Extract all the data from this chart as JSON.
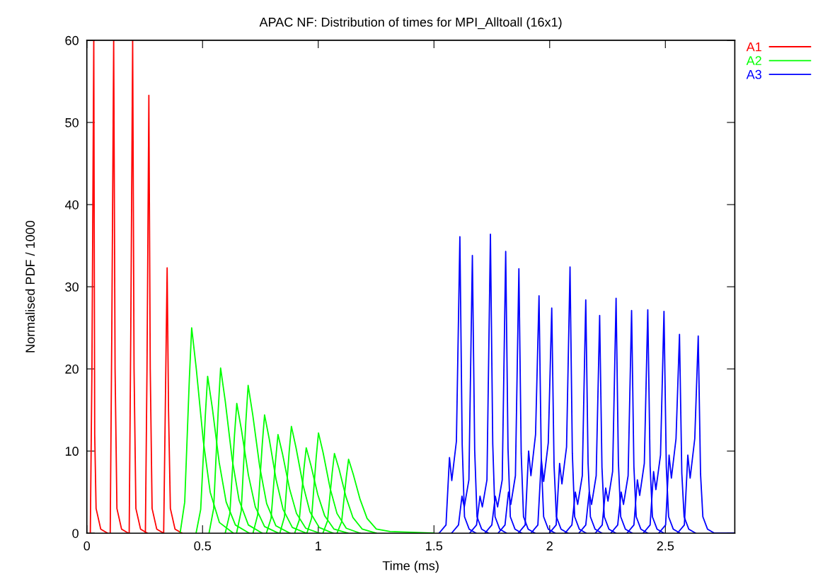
{
  "chart_data": {
    "type": "line",
    "title": "APAC NF: Distribution of times for MPI_Alltoall (16x1)",
    "xlabel": "Time (ms)",
    "ylabel": "Normalised PDF / 1000",
    "xlim": [
      0,
      2.8
    ],
    "xticks": [
      0,
      0.5,
      1,
      1.5,
      2,
      2.5
    ],
    "ylim": [
      0,
      60
    ],
    "yticks": [
      0,
      10,
      20,
      30,
      40,
      50,
      60
    ],
    "grid": false,
    "legend": "top right",
    "marker": "none",
    "line_style": "solid",
    "series": [
      {
        "name": "A1",
        "color": "#ff0000",
        "x": [
          0.015,
          0.022,
          0.03,
          0.034,
          0.04,
          0.06,
          0.09
        ],
        "values": [
          0,
          20,
          60,
          12,
          3,
          0.5,
          0
        ]
      },
      {
        "color": "#ff0000",
        "x": [
          0.101,
          0.108,
          0.116,
          0.122,
          0.13,
          0.15,
          0.18
        ],
        "values": [
          0,
          25,
          60,
          20,
          3,
          0.5,
          0
        ]
      },
      {
        "color": "#ff0000",
        "x": [
          0.183,
          0.19,
          0.198,
          0.204,
          0.212,
          0.232,
          0.262
        ],
        "values": [
          0,
          25,
          60,
          20,
          3,
          0.5,
          0
        ]
      },
      {
        "color": "#ff0000",
        "x": [
          0.253,
          0.26,
          0.268,
          0.274,
          0.282,
          0.302,
          0.332
        ],
        "values": [
          0,
          20,
          53.3,
          20,
          3,
          0.5,
          0
        ]
      },
      {
        "color": "#ff0000",
        "x": [
          0.332,
          0.339,
          0.347,
          0.353,
          0.361,
          0.381,
          0.411
        ],
        "values": [
          0,
          15,
          32.3,
          15,
          3,
          0.5,
          0
        ]
      },
      {
        "name": "A2",
        "color": "#00ff00",
        "x": [
          0.403,
          0.423,
          0.443,
          0.453,
          0.473,
          0.503,
          0.533,
          0.573,
          0.633
        ],
        "values": [
          0,
          3.8,
          18.8,
          25,
          20,
          11.3,
          5,
          1.3,
          0
        ]
      },
      {
        "color": "#00ff00",
        "x": [
          0.472,
          0.492,
          0.512,
          0.522,
          0.542,
          0.572,
          0.602,
          0.642,
          0.702
        ],
        "values": [
          0,
          2.9,
          14.3,
          19.1,
          15.3,
          8.6,
          3.8,
          1,
          0
        ]
      },
      {
        "color": "#00ff00",
        "x": [
          0.528,
          0.548,
          0.568,
          0.578,
          0.598,
          0.628,
          0.658,
          0.698,
          0.758
        ],
        "values": [
          0,
          3,
          15.1,
          20.1,
          16.1,
          9,
          4,
          1,
          0
        ]
      },
      {
        "color": "#00ff00",
        "x": [
          0.598,
          0.618,
          0.638,
          0.648,
          0.668,
          0.698,
          0.728,
          0.768,
          0.828
        ],
        "values": [
          0,
          2.4,
          11.9,
          15.8,
          12.6,
          7.1,
          3.2,
          0.8,
          0
        ]
      },
      {
        "color": "#00ff00",
        "x": [
          0.647,
          0.667,
          0.687,
          0.697,
          0.717,
          0.747,
          0.777,
          0.817,
          0.877
        ],
        "values": [
          0,
          2.7,
          13.5,
          18,
          14.4,
          8.1,
          3.6,
          0.9,
          0
        ]
      },
      {
        "color": "#00ff00",
        "x": [
          0.718,
          0.738,
          0.758,
          0.768,
          0.788,
          0.818,
          0.848,
          0.888,
          0.948
        ],
        "values": [
          0,
          2.2,
          10.8,
          14.4,
          11.5,
          6.5,
          2.9,
          0.7,
          0
        ]
      },
      {
        "color": "#00ff00",
        "x": [
          0.776,
          0.796,
          0.816,
          0.826,
          0.846,
          0.876,
          0.906,
          0.946,
          1.006
        ],
        "values": [
          0,
          1.8,
          9,
          12,
          9.6,
          5.4,
          2.4,
          0.6,
          0
        ]
      },
      {
        "color": "#00ff00",
        "x": [
          0.834,
          0.854,
          0.874,
          0.884,
          0.904,
          0.934,
          0.964,
          1.004,
          1.064
        ],
        "values": [
          0,
          2,
          9.8,
          13,
          10.4,
          5.9,
          2.6,
          0.7,
          0
        ]
      },
      {
        "color": "#00ff00",
        "x": [
          0.898,
          0.918,
          0.938,
          0.948,
          0.968,
          0.998,
          1.028,
          1.068,
          1.128
        ],
        "values": [
          0,
          1.6,
          7.8,
          10.4,
          8.3,
          4.7,
          2.1,
          0.5,
          0
        ]
      },
      {
        "color": "#00ff00",
        "x": [
          0.951,
          0.971,
          0.991,
          1.001,
          1.021,
          1.051,
          1.081,
          1.121,
          1.181
        ],
        "values": [
          0,
          1.8,
          9.2,
          12.2,
          9.8,
          5.5,
          2.4,
          0.6,
          0
        ]
      },
      {
        "color": "#00ff00",
        "x": [
          1.02,
          1.04,
          1.06,
          1.07,
          1.09,
          1.12,
          1.15,
          1.19,
          1.25
        ],
        "values": [
          0,
          1.5,
          7.3,
          9.7,
          7.8,
          4.4,
          1.9,
          0.5,
          0
        ]
      },
      {
        "color": "#00ff00",
        "x": [
          1.081,
          1.101,
          1.121,
          1.131,
          1.151,
          1.181,
          1.211,
          1.251,
          1.311,
          1.5
        ],
        "values": [
          0,
          1.4,
          6.8,
          9,
          7.2,
          4.1,
          1.8,
          0.5,
          0.2,
          0
        ]
      },
      {
        "name": "A3",
        "color": "#0000ff",
        "x": [
          1.522,
          1.552,
          1.567,
          1.577,
          1.597,
          1.612,
          1.622,
          1.632,
          1.652,
          1.682
        ],
        "values": [
          0,
          1,
          9.2,
          6.4,
          11.2,
          36.1,
          10.8,
          2,
          0.5,
          0
        ]
      },
      {
        "color": "#0000ff",
        "x": [
          1.576,
          1.606,
          1.621,
          1.631,
          1.651,
          1.666,
          1.676,
          1.686,
          1.706,
          1.736
        ],
        "values": [
          0,
          1,
          4.5,
          3.2,
          6.5,
          33.8,
          10.1,
          2,
          0.5,
          0
        ]
      },
      {
        "color": "#0000ff",
        "x": [
          1.654,
          1.684,
          1.699,
          1.709,
          1.729,
          1.744,
          1.754,
          1.764,
          1.784,
          1.814
        ],
        "values": [
          0,
          1,
          4.5,
          3.2,
          6.5,
          36.4,
          10.9,
          2,
          0.5,
          0
        ]
      },
      {
        "color": "#0000ff",
        "x": [
          1.72,
          1.75,
          1.765,
          1.775,
          1.795,
          1.81,
          1.82,
          1.83,
          1.85,
          1.88
        ],
        "values": [
          0,
          1,
          4.5,
          3.2,
          6.5,
          34.3,
          10.3,
          2,
          0.5,
          0
        ]
      },
      {
        "color": "#0000ff",
        "x": [
          1.777,
          1.807,
          1.822,
          1.832,
          1.852,
          1.867,
          1.877,
          1.887,
          1.907,
          1.937
        ],
        "values": [
          0,
          1,
          5,
          3.5,
          7,
          32.2,
          9.7,
          2,
          0.5,
          0
        ]
      },
      {
        "color": "#0000ff",
        "x": [
          1.864,
          1.894,
          1.909,
          1.919,
          1.939,
          1.954,
          1.964,
          1.974,
          1.994,
          2.024
        ],
        "values": [
          0,
          1,
          10,
          7,
          12,
          28.9,
          8.7,
          2,
          0.5,
          0
        ]
      },
      {
        "color": "#0000ff",
        "x": [
          1.919,
          1.949,
          1.964,
          1.974,
          1.994,
          2.009,
          2.019,
          2.029,
          2.049,
          2.079
        ],
        "values": [
          0,
          1,
          9,
          6.3,
          11,
          27.4,
          8.2,
          2,
          0.5,
          0
        ]
      },
      {
        "color": "#0000ff",
        "x": [
          1.998,
          2.028,
          2.043,
          2.053,
          2.073,
          2.088,
          2.098,
          2.108,
          2.128,
          2.158
        ],
        "values": [
          0,
          1,
          8.5,
          6,
          10.5,
          32.4,
          9.7,
          2,
          0.5,
          0
        ]
      },
      {
        "color": "#0000ff",
        "x": [
          2.066,
          2.096,
          2.111,
          2.121,
          2.141,
          2.156,
          2.166,
          2.176,
          2.196,
          2.226
        ],
        "values": [
          0,
          1,
          5,
          3.5,
          7,
          28.4,
          8.5,
          2,
          0.5,
          0
        ]
      },
      {
        "color": "#0000ff",
        "x": [
          2.126,
          2.156,
          2.171,
          2.181,
          2.201,
          2.216,
          2.226,
          2.236,
          2.256,
          2.286
        ],
        "values": [
          0,
          1,
          5,
          3.5,
          7,
          26.5,
          8,
          2,
          0.5,
          0
        ]
      },
      {
        "color": "#0000ff",
        "x": [
          2.197,
          2.227,
          2.242,
          2.252,
          2.272,
          2.287,
          2.297,
          2.307,
          2.327,
          2.357
        ],
        "values": [
          0,
          1,
          5.5,
          3.9,
          7.5,
          28.6,
          8.6,
          2,
          0.5,
          0
        ]
      },
      {
        "color": "#0000ff",
        "x": [
          2.264,
          2.294,
          2.309,
          2.319,
          2.339,
          2.354,
          2.364,
          2.374,
          2.394,
          2.424
        ],
        "values": [
          0,
          1,
          5,
          3.5,
          7,
          27.1,
          8.1,
          2,
          0.5,
          0
        ]
      },
      {
        "color": "#0000ff",
        "x": [
          2.334,
          2.364,
          2.379,
          2.389,
          2.409,
          2.424,
          2.434,
          2.444,
          2.464,
          2.494
        ],
        "values": [
          0,
          1,
          6.5,
          4.6,
          8.5,
          27.2,
          8.2,
          2,
          0.5,
          0
        ]
      },
      {
        "color": "#0000ff",
        "x": [
          2.404,
          2.434,
          2.449,
          2.459,
          2.479,
          2.494,
          2.504,
          2.514,
          2.534,
          2.564
        ],
        "values": [
          0,
          1,
          7.5,
          5.3,
          9.5,
          27,
          8.1,
          2,
          0.5,
          0
        ]
      },
      {
        "color": "#0000ff",
        "x": [
          2.471,
          2.501,
          2.516,
          2.526,
          2.546,
          2.561,
          2.571,
          2.581,
          2.601,
          2.631
        ],
        "values": [
          0,
          1,
          9.5,
          6.7,
          11.5,
          24.2,
          7.3,
          2,
          0.5,
          0
        ]
      },
      {
        "color": "#0000ff",
        "x": [
          2.552,
          2.582,
          2.597,
          2.607,
          2.627,
          2.642,
          2.652,
          2.662,
          2.682,
          2.712,
          2.8
        ],
        "values": [
          0,
          1,
          9.5,
          6.7,
          11.5,
          24,
          7.2,
          2,
          0.5,
          0,
          0
        ]
      }
    ]
  }
}
